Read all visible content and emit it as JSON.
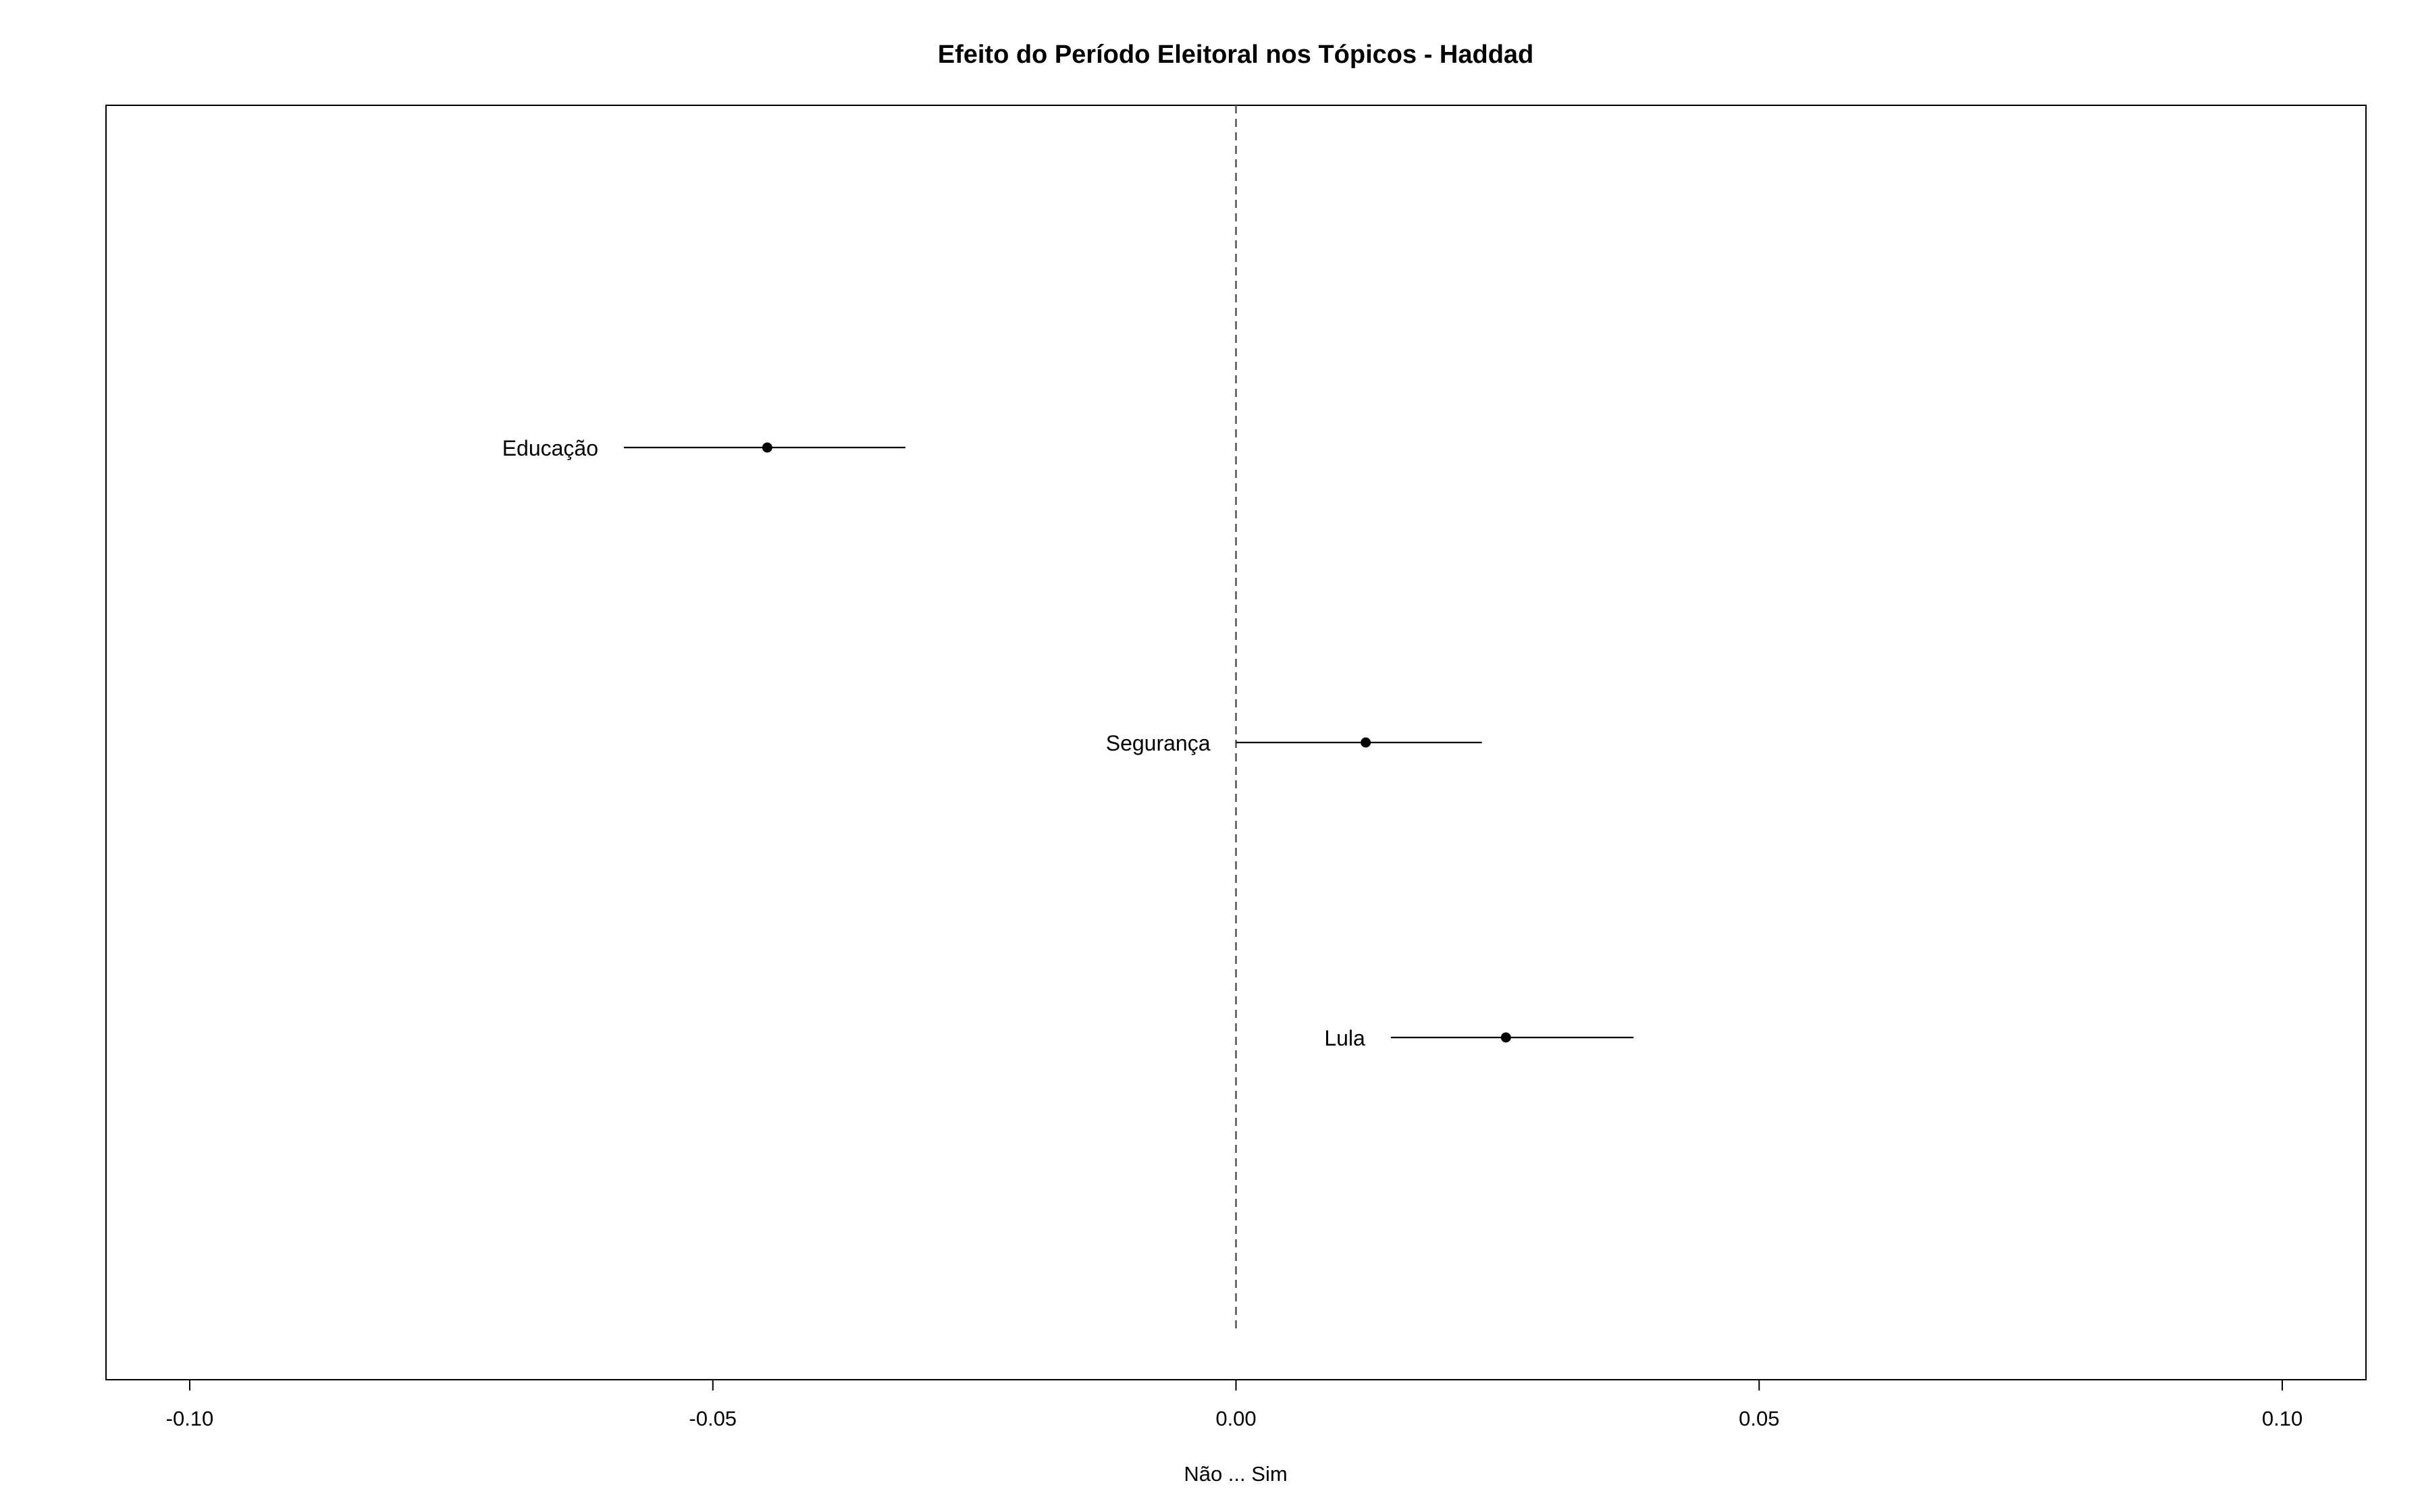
{
  "chart_data": {
    "type": "scatter",
    "title": "Efeito do Período Eleitoral nos Tópicos - Haddad",
    "xlabel": "Não ... Sim",
    "ylabel": "",
    "xlim": [
      -0.108,
      0.108
    ],
    "x_ticks": [
      -0.1,
      -0.05,
      0.0,
      0.05,
      0.1
    ],
    "x_tick_labels": [
      "-0.10",
      "-0.05",
      "0.00",
      "0.05",
      "0.10"
    ],
    "reference_line": {
      "x": 0.0,
      "style": "dashed"
    },
    "grid": false,
    "legend": "none",
    "points": [
      {
        "label": "Educação",
        "estimate": -0.0448,
        "lower": -0.0585,
        "upper": -0.0316
      },
      {
        "label": "Segurança",
        "estimate": 0.0124,
        "lower": 0.0,
        "upper": 0.0235
      },
      {
        "label": "Lula",
        "estimate": 0.0258,
        "lower": 0.0148,
        "upper": 0.038
      }
    ],
    "colors": {
      "point": "#000000",
      "line": "#000000",
      "reference": "#555555",
      "frame": "#000000"
    }
  }
}
